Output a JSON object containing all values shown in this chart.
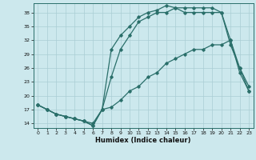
{
  "xlabel": "Humidex (Indice chaleur)",
  "background_color": "#cce8ed",
  "grid_color": "#aacdd4",
  "line_color": "#2a6f6a",
  "xlim": [
    -0.5,
    23.5
  ],
  "ylim": [
    13.0,
    40.0
  ],
  "yticks": [
    14,
    17,
    20,
    23,
    26,
    29,
    32,
    35,
    38
  ],
  "xticks": [
    0,
    1,
    2,
    3,
    4,
    5,
    6,
    7,
    8,
    9,
    10,
    11,
    12,
    13,
    14,
    15,
    16,
    17,
    18,
    19,
    20,
    21,
    22,
    23
  ],
  "line1_x": [
    0,
    1,
    2,
    3,
    4,
    5,
    6,
    7,
    8,
    9,
    10,
    11,
    12,
    13,
    14,
    15,
    16,
    17,
    18,
    19,
    20,
    21,
    22,
    23
  ],
  "line1_y": [
    18,
    17,
    16,
    15.5,
    15,
    14.5,
    14,
    17,
    17.5,
    19,
    21,
    22,
    24,
    25,
    27,
    28,
    29,
    30,
    30,
    31,
    31,
    32,
    26,
    22
  ],
  "line2_x": [
    0,
    1,
    2,
    3,
    4,
    5,
    6,
    7,
    8,
    9,
    10,
    11,
    12,
    13,
    14,
    15,
    16,
    17,
    18,
    19,
    20,
    21,
    22,
    23
  ],
  "line2_y": [
    18,
    17,
    16,
    15.5,
    15,
    14.5,
    13.5,
    17,
    30,
    33,
    35,
    37,
    38,
    38.5,
    39.5,
    39,
    39,
    39,
    39,
    39,
    38,
    31,
    26,
    21
  ],
  "line3_x": [
    0,
    1,
    2,
    3,
    4,
    5,
    6,
    7,
    8,
    9,
    10,
    11,
    12,
    13,
    14,
    15,
    16,
    17,
    18,
    19,
    20,
    21,
    22,
    23
  ],
  "line3_y": [
    18,
    17,
    16,
    15.5,
    15,
    14.5,
    13.5,
    17,
    24,
    30,
    33,
    36,
    37,
    38,
    38,
    39,
    38,
    38,
    38,
    38,
    38,
    32,
    25,
    21
  ],
  "marker": "D",
  "markersize": 1.8,
  "linewidth": 0.9
}
